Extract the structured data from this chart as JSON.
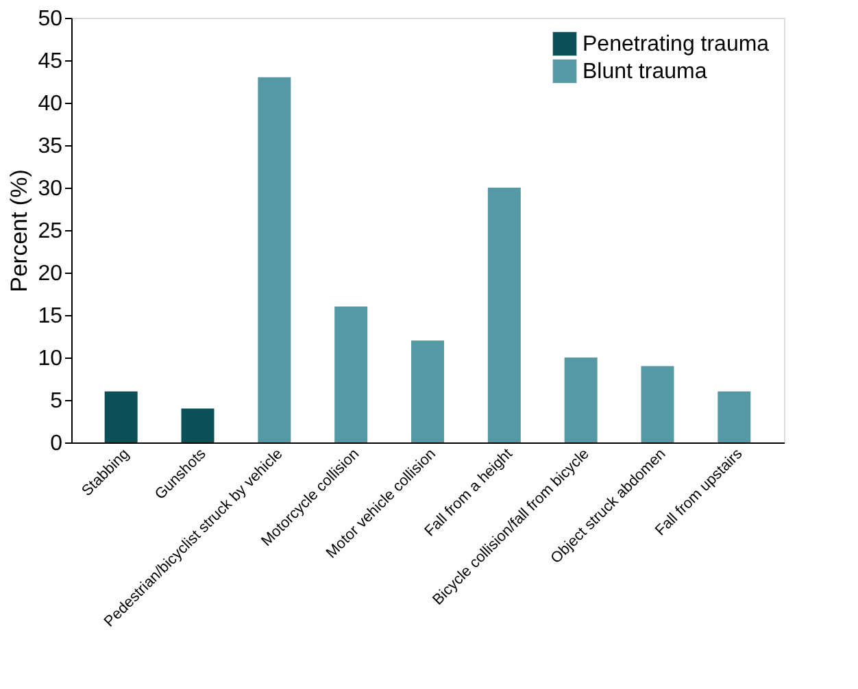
{
  "chart_data": {
    "type": "bar",
    "ylabel": "Percent (%)",
    "categories": [
      "Stabbing",
      "Gunshots",
      "Pedestrian/bicyclist struck by vehicle",
      "Motorcycle collision",
      "Motor vehicle collision",
      "Fall from a height",
      "Bicycle collision/fall from bicycle",
      "Object struck abdomen",
      "Fall from upstairs"
    ],
    "series": [
      {
        "name": "Penetrating trauma",
        "color": "#0b4f57",
        "values": [
          6,
          4,
          null,
          null,
          null,
          null,
          null,
          null,
          null
        ]
      },
      {
        "name": "Blunt trauma",
        "color": "#5599a5",
        "values": [
          null,
          null,
          43,
          16,
          12,
          30,
          10,
          9,
          6
        ]
      }
    ],
    "ylim": [
      0,
      50
    ],
    "yticks": [
      0,
      5,
      10,
      15,
      20,
      25,
      30,
      35,
      40,
      45,
      50
    ],
    "grid": false,
    "legend": "top right"
  }
}
